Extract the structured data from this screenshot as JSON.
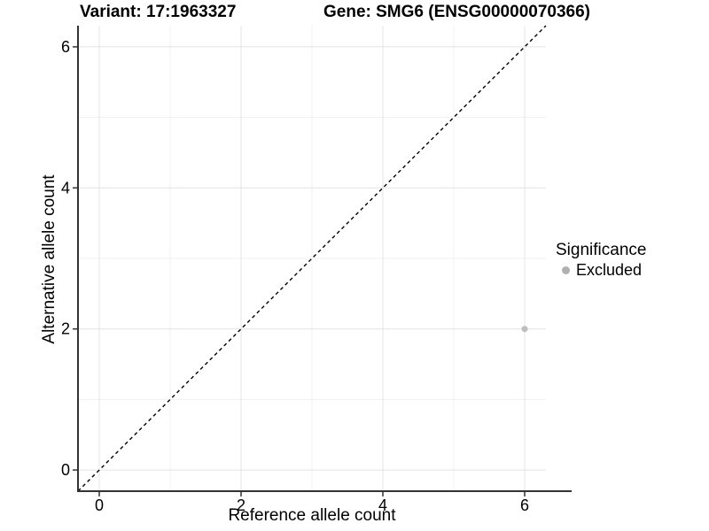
{
  "header": {
    "title_left": "Variant: 17:1963327",
    "title_right": "Gene: SMG6 (ENSG00000070366)"
  },
  "chart_data": {
    "type": "scatter",
    "xlabel": "Reference allele count",
    "ylabel": "Alternative allele count",
    "xlim": [
      -0.3,
      6.3
    ],
    "ylim": [
      -0.3,
      6.3
    ],
    "xticks": [
      0,
      2,
      4,
      6
    ],
    "yticks": [
      0,
      2,
      4,
      6
    ],
    "minor_x": [
      1,
      3,
      5
    ],
    "minor_y": [
      1,
      3,
      5
    ],
    "grid": true,
    "points": [
      {
        "x": 6,
        "y": 2,
        "series": "Excluded"
      }
    ],
    "reference_line": {
      "style": "dashed",
      "equation": "y = x",
      "from": [
        -0.3,
        -0.3
      ],
      "to": [
        6.3,
        6.3
      ]
    },
    "legend": {
      "title": "Significance",
      "position": "right",
      "items": [
        {
          "label": "Excluded",
          "color": "#B0B0B0"
        }
      ]
    },
    "colors": {
      "point": "#BDBDBD",
      "axis": "#333333",
      "grid_major": "#E4E4E4",
      "grid_minor": "#F1F1F1",
      "reference_line": "#000000",
      "text": "#000000"
    }
  }
}
